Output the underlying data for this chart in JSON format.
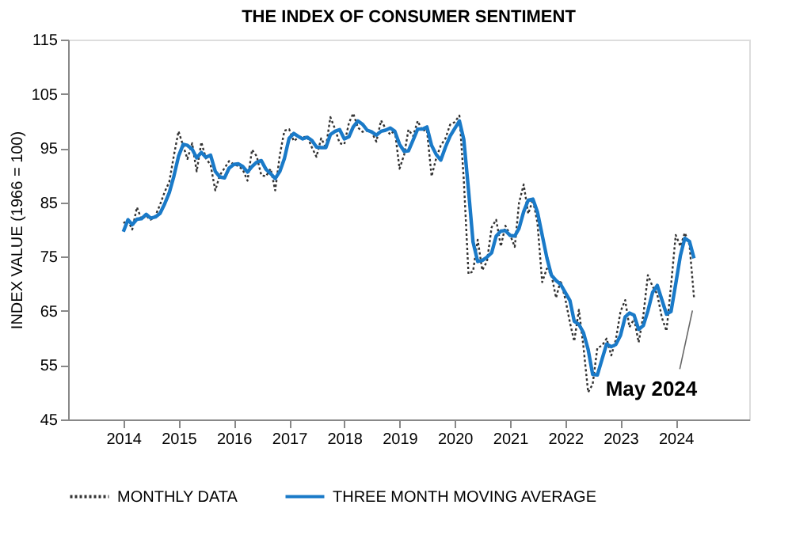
{
  "chart_data": {
    "type": "line",
    "title": "THE INDEX OF CONSUMER SENTIMENT",
    "ylabel": "INDEX VALUE (1966 = 100)",
    "x": [
      "2014-01",
      "2014-02",
      "2014-03",
      "2014-04",
      "2014-05",
      "2014-06",
      "2014-07",
      "2014-08",
      "2014-09",
      "2014-10",
      "2014-11",
      "2014-12",
      "2015-01",
      "2015-02",
      "2015-03",
      "2015-04",
      "2015-05",
      "2015-06",
      "2015-07",
      "2015-08",
      "2015-09",
      "2015-10",
      "2015-11",
      "2015-12",
      "2016-01",
      "2016-02",
      "2016-03",
      "2016-04",
      "2016-05",
      "2016-06",
      "2016-07",
      "2016-08",
      "2016-09",
      "2016-10",
      "2016-11",
      "2016-12",
      "2017-01",
      "2017-02",
      "2017-03",
      "2017-04",
      "2017-05",
      "2017-06",
      "2017-07",
      "2017-08",
      "2017-09",
      "2017-10",
      "2017-11",
      "2017-12",
      "2018-01",
      "2018-02",
      "2018-03",
      "2018-04",
      "2018-05",
      "2018-06",
      "2018-07",
      "2018-08",
      "2018-09",
      "2018-10",
      "2018-11",
      "2018-12",
      "2019-01",
      "2019-02",
      "2019-03",
      "2019-04",
      "2019-05",
      "2019-06",
      "2019-07",
      "2019-08",
      "2019-09",
      "2019-10",
      "2019-11",
      "2019-12",
      "2020-01",
      "2020-02",
      "2020-03",
      "2020-04",
      "2020-05",
      "2020-06",
      "2020-07",
      "2020-08",
      "2020-09",
      "2020-10",
      "2020-11",
      "2020-12",
      "2021-01",
      "2021-02",
      "2021-03",
      "2021-04",
      "2021-05",
      "2021-06",
      "2021-07",
      "2021-08",
      "2021-09",
      "2021-10",
      "2021-11",
      "2021-12",
      "2022-01",
      "2022-02",
      "2022-03",
      "2022-04",
      "2022-05",
      "2022-06",
      "2022-07",
      "2022-08",
      "2022-09",
      "2022-10",
      "2022-11",
      "2022-12",
      "2023-01",
      "2023-02",
      "2023-03",
      "2023-04",
      "2023-05",
      "2023-06",
      "2023-07",
      "2023-08",
      "2023-09",
      "2023-10",
      "2023-11",
      "2023-12",
      "2024-01",
      "2024-02",
      "2024-03",
      "2024-04",
      "2024-05"
    ],
    "series": [
      {
        "name": "MONTHLY DATA",
        "color": "#333333",
        "line_style": "dotted",
        "values": [
          81.2,
          81.6,
          80.0,
          84.1,
          81.9,
          82.5,
          81.8,
          82.5,
          84.6,
          86.9,
          88.8,
          93.6,
          98.1,
          95.4,
          93.0,
          95.9,
          90.7,
          96.1,
          93.1,
          91.9,
          87.2,
          90.0,
          91.3,
          92.6,
          92.0,
          91.7,
          91.0,
          89.0,
          94.7,
          93.5,
          90.0,
          89.8,
          91.2,
          87.2,
          93.8,
          98.2,
          98.5,
          96.3,
          96.9,
          97.0,
          97.1,
          95.1,
          93.4,
          96.8,
          95.1,
          100.7,
          98.5,
          95.9,
          95.7,
          99.7,
          101.4,
          98.8,
          98.0,
          98.2,
          97.9,
          96.2,
          100.1,
          98.6,
          97.5,
          98.3,
          91.2,
          93.8,
          98.4,
          97.2,
          100.0,
          98.2,
          98.4,
          89.8,
          93.2,
          95.5,
          96.8,
          99.3,
          99.8,
          101.0,
          89.1,
          71.8,
          72.3,
          78.1,
          72.5,
          74.1,
          80.4,
          81.8,
          76.9,
          80.7,
          79.0,
          76.8,
          84.9,
          88.3,
          82.9,
          85.5,
          81.2,
          70.3,
          72.8,
          71.7,
          67.4,
          70.6,
          67.2,
          62.8,
          59.4,
          65.2,
          58.4,
          50.0,
          51.5,
          58.2,
          58.6,
          59.9,
          56.8,
          59.7,
          64.9,
          67.0,
          62.0,
          63.5,
          59.2,
          64.2,
          71.6,
          69.5,
          68.1,
          63.8,
          61.3,
          69.7,
          79.0,
          76.9,
          79.4,
          77.2,
          67.4
        ]
      },
      {
        "name": "THREE MONTH MOVING AVERAGE",
        "color": "#1a7ac8",
        "line_style": "solid",
        "values": [
          79.6,
          81.8,
          80.9,
          81.9,
          82.0,
          82.8,
          82.1,
          82.3,
          83.0,
          84.7,
          86.8,
          89.8,
          93.5,
          95.7,
          95.5,
          94.8,
          93.2,
          94.2,
          93.3,
          93.7,
          90.7,
          89.7,
          89.5,
          91.3,
          92.0,
          92.1,
          91.6,
          90.6,
          91.6,
          92.4,
          92.7,
          91.1,
          90.3,
          89.4,
          90.7,
          93.1,
          96.8,
          97.7,
          97.2,
          96.7,
          97.0,
          96.4,
          95.2,
          95.1,
          95.1,
          97.5,
          98.1,
          98.4,
          96.7,
          97.1,
          98.9,
          100.0,
          99.4,
          98.3,
          98.0,
          97.4,
          98.1,
          98.3,
          98.7,
          98.1,
          95.7,
          94.4,
          94.5,
          96.5,
          98.5,
          98.5,
          98.9,
          95.5,
          93.8,
          92.8,
          95.2,
          97.2,
          98.6,
          100.0,
          96.6,
          87.3,
          77.7,
          74.1,
          74.3,
          74.9,
          75.7,
          78.8,
          79.7,
          79.8,
          78.9,
          78.8,
          80.2,
          83.3,
          85.4,
          85.6,
          83.2,
          79.0,
          74.8,
          71.6,
          70.6,
          69.9,
          68.4,
          66.9,
          63.1,
          62.5,
          61.0,
          57.9,
          53.3,
          53.2,
          56.1,
          58.9,
          58.4,
          58.8,
          60.5,
          63.9,
          64.6,
          64.2,
          61.6,
          62.3,
          65.0,
          68.4,
          69.7,
          67.1,
          64.4,
          64.9,
          70.0,
          75.2,
          78.4,
          77.8,
          74.7
        ]
      }
    ],
    "xlim": [
      "2013-01",
      "2025-05"
    ],
    "xticks": [
      "2014",
      "2015",
      "2016",
      "2017",
      "2018",
      "2019",
      "2020",
      "2021",
      "2022",
      "2023",
      "2024"
    ],
    "ylim": [
      45,
      115
    ],
    "yticks": [
      45,
      55,
      65,
      75,
      85,
      95,
      105,
      115
    ],
    "grid": false,
    "legend": "bottom",
    "marker": "none",
    "annotations": [
      {
        "text": "May 2024",
        "x": "2024-05",
        "y": 67.4
      }
    ]
  }
}
